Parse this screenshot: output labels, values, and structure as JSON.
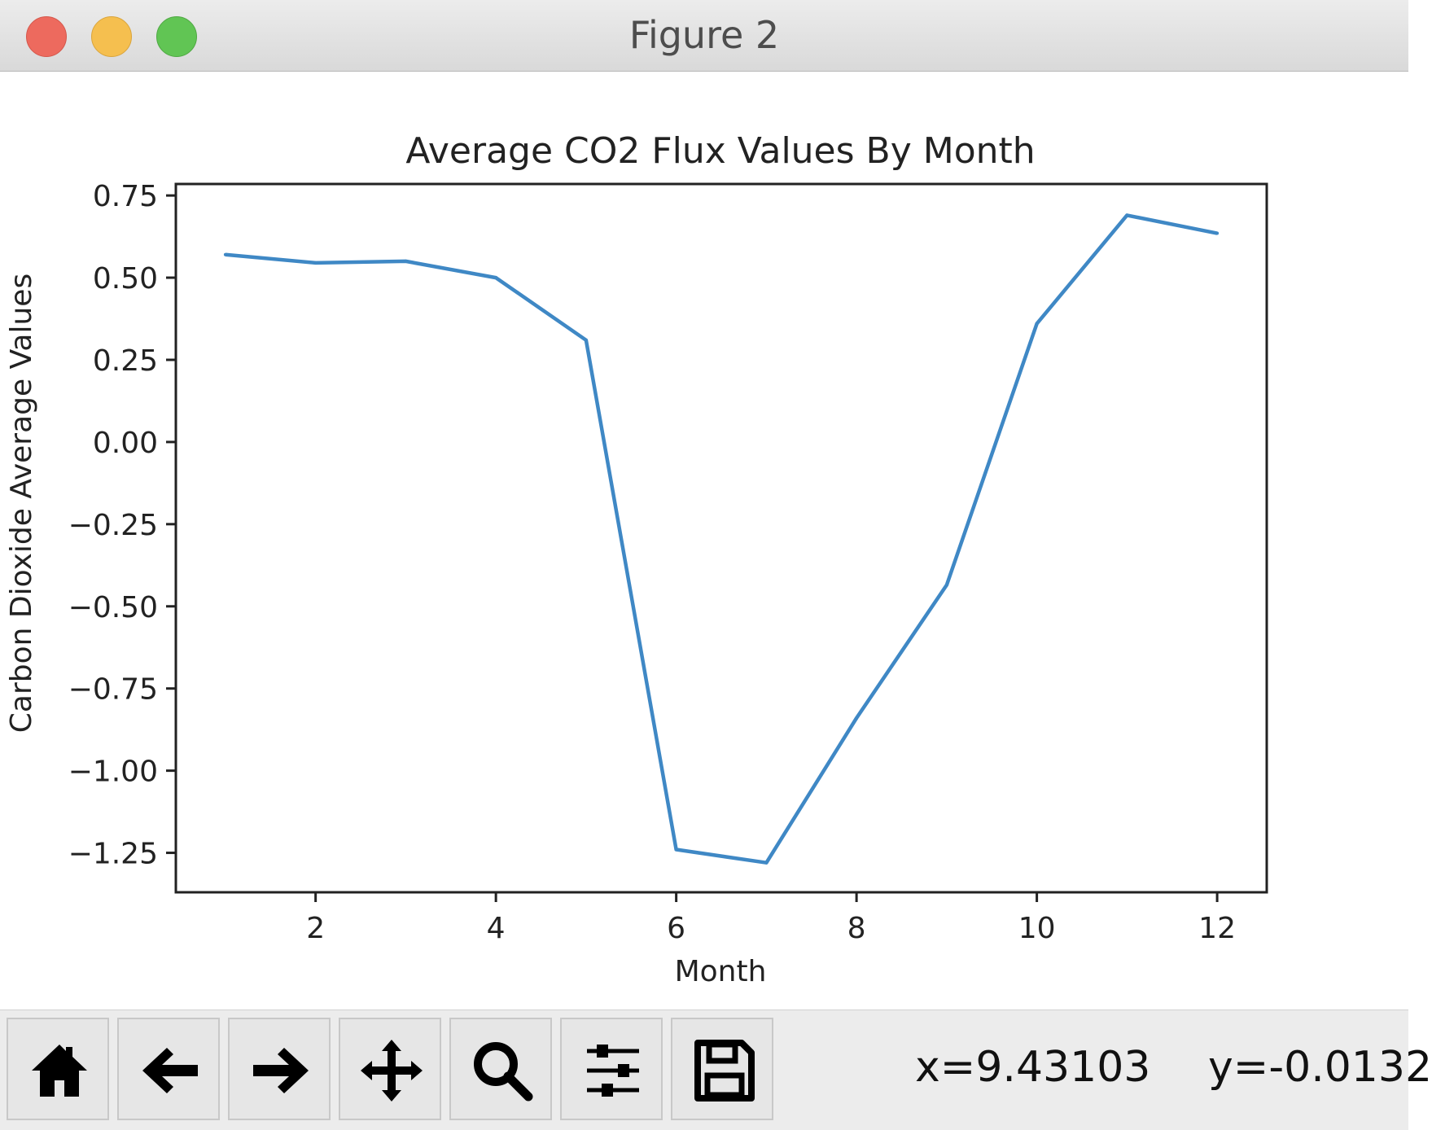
{
  "window": {
    "title": "Figure 2"
  },
  "chart_data": {
    "type": "line",
    "title": "Average CO2 Flux Values By Month",
    "xlabel": "Month",
    "ylabel": "Carbon Dioxide Average Values",
    "x": [
      1,
      2,
      3,
      4,
      5,
      6,
      7,
      8,
      9,
      10,
      11,
      12
    ],
    "series": [
      {
        "values": [
          0.57,
          0.545,
          0.55,
          0.5,
          0.31,
          -1.24,
          -1.28,
          -0.84,
          -0.435,
          0.36,
          0.69,
          0.635
        ],
        "color": "#3f88c5"
      }
    ],
    "xlim": [
      0.45,
      12.55
    ],
    "ylim": [
      -1.37,
      0.785
    ],
    "xticks": [
      2,
      4,
      6,
      8,
      10,
      12
    ],
    "xtick_labels": [
      "2",
      "4",
      "6",
      "8",
      "10",
      "12"
    ],
    "yticks": [
      0.75,
      0.5,
      0.25,
      0.0,
      -0.25,
      -0.5,
      -0.75,
      -1.0,
      -1.25
    ],
    "ytick_labels": [
      "0.75",
      "0.50",
      "0.25",
      "0.00",
      "−0.25",
      "−0.50",
      "−0.75",
      "−1.00",
      "−1.25"
    ],
    "grid": false,
    "legend": "none"
  },
  "toolbar": {
    "buttons": [
      {
        "name": "home-button",
        "icon": "home-icon"
      },
      {
        "name": "back-button",
        "icon": "arrow-left-icon"
      },
      {
        "name": "forward-button",
        "icon": "arrow-right-icon"
      },
      {
        "name": "pan-button",
        "icon": "move-icon"
      },
      {
        "name": "zoom-button",
        "icon": "magnifier-icon"
      },
      {
        "name": "configure-subplots-button",
        "icon": "sliders-icon"
      },
      {
        "name": "save-button",
        "icon": "floppy-disk-icon"
      }
    ],
    "x_coord": "x=9.43103",
    "y_coord": "y=-0.0132"
  }
}
